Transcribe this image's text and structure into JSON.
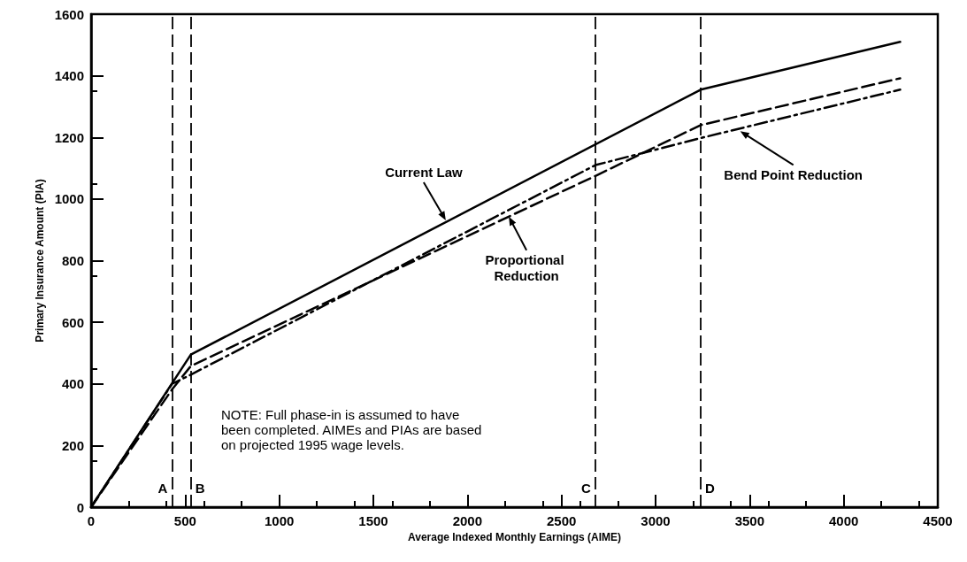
{
  "chart_data": {
    "type": "line",
    "xlabel": "Average Indexed Monthly Earnings (AIME)",
    "ylabel": "Primary Insurance Amount (PIA)",
    "xlim": [
      0,
      4500
    ],
    "xticks": [
      0,
      500,
      1000,
      1500,
      2000,
      2500,
      3000,
      3500,
      4000,
      4500
    ],
    "ylim": [
      0,
      1600
    ],
    "yticks": [
      0,
      200,
      400,
      600,
      800,
      1000,
      1200,
      1400,
      1600
    ],
    "grid": false,
    "marker": "none",
    "series": [
      {
        "color": "#000000",
        "line_style": "solid",
        "x": [
          0,
          530,
          3240,
          4300
        ],
        "values": [
          0,
          495,
          1355,
          1510
        ]
      },
      {
        "color": "#000000",
        "line_style": "dashed",
        "x": [
          0,
          430,
          530,
          2680,
          3240,
          4300
        ],
        "values": [
          0,
          382,
          458,
          1075,
          1240,
          1392
        ]
      },
      {
        "color": "#000000",
        "line_style": "dashdot",
        "x": [
          0,
          430,
          530,
          2680,
          3240,
          4300
        ],
        "values": [
          0,
          400,
          430,
          1110,
          1198,
          1355
        ]
      }
    ],
    "ref_lines": [
      {
        "axis": "x",
        "value": 430,
        "label": "A",
        "color": "#000000",
        "line_style": "dashed"
      },
      {
        "axis": "x",
        "value": 530,
        "label": "B",
        "color": "#000000",
        "line_style": "dashed"
      },
      {
        "axis": "x",
        "value": 2680,
        "label": "C",
        "color": "#000000",
        "line_style": "dashed"
      },
      {
        "axis": "x",
        "value": 3240,
        "label": "D",
        "color": "#000000",
        "line_style": "dashed"
      }
    ],
    "annotations": [
      "Current Law",
      {
        "text": "Proportional Reduction",
        "x": 2220,
        "y": 943
      },
      {
        "text": "Bend Point Reduction",
        "x": 3450,
        "y": 1220
      },
      "NOTE: Full phase-in is assumed to have been completed. AIMEs and PIAs are based on projected 1995 wage levels."
    ]
  }
}
